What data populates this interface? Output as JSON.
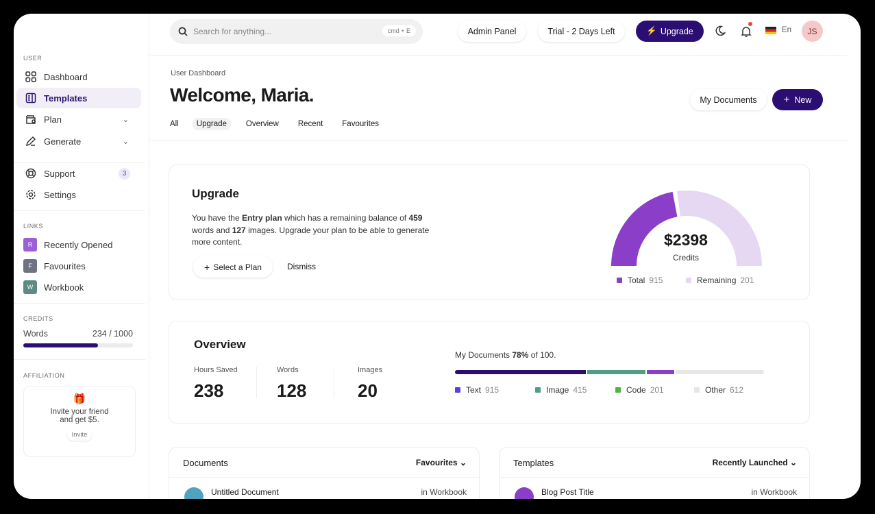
{
  "sidebar": {
    "user_label": "USER",
    "items": [
      {
        "label": "Dashboard",
        "icon": "grid-icon"
      },
      {
        "label": "Templates",
        "icon": "template-icon",
        "active": true
      },
      {
        "label": "Plan",
        "icon": "wallet-icon"
      },
      {
        "label": "Generate",
        "icon": "pencil-icon"
      },
      {
        "label": "Support",
        "icon": "lifebuoy-icon",
        "badge": "3"
      },
      {
        "label": "Settings",
        "icon": "gear-icon"
      }
    ],
    "links_label": "LINKS",
    "links": [
      {
        "letter": "R",
        "label": "Recently Opened",
        "color": "#9b5fd6"
      },
      {
        "letter": "F",
        "label": "Favourites",
        "color": "#6f7280"
      },
      {
        "letter": "W",
        "label": "Workbook",
        "color": "#5f8a84"
      }
    ],
    "credits_label": "CREDITS",
    "credits": {
      "label": "Words",
      "value": "234 / 1000",
      "fill": 0.68
    },
    "affiliation_label": "AFFILIATION",
    "invite": {
      "text1": "Invite your friend",
      "text2": "and get $5.",
      "button": "Invite"
    }
  },
  "topbar": {
    "search_placeholder": "Search for anything...",
    "shortcut": "cmd + E",
    "admin": "Admin Panel",
    "trial": "Trial - 2 Days Left",
    "upgrade": "Upgrade",
    "lang": "En",
    "avatar": "JS"
  },
  "header": {
    "breadcrumb": "User Dashboard",
    "title": "Welcome, Maria.",
    "tabs": [
      "All",
      "Upgrade",
      "Overview",
      "Recent",
      "Favourites"
    ],
    "active_tab": "Upgrade",
    "my_docs": "My Documents",
    "new": "New"
  },
  "upgrade": {
    "title": "Upgrade",
    "text_a": "You have the ",
    "plan": "Entry plan",
    "text_b": " which has a remaining balance of ",
    "words": "459",
    "text_c": " words and ",
    "images": "127",
    "text_d": " images. Upgrade your plan to be able to generate more content.",
    "select": "Select a Plan",
    "dismiss": "Dismiss",
    "gauge": {
      "value": "$2398",
      "label": "Credits",
      "fill": 0.45,
      "colors": {
        "total": "#8b3fc9",
        "remaining": "#e6d8f3"
      },
      "legend": [
        {
          "label": "Total",
          "value": "915"
        },
        {
          "label": "Remaining",
          "value": "201"
        }
      ]
    }
  },
  "overview": {
    "title": "Overview",
    "stats": [
      {
        "label": "Hours Saved",
        "value": "238"
      },
      {
        "label": "Words",
        "value": "128"
      },
      {
        "label": "Images",
        "value": "20"
      }
    ],
    "docs_a": "My Documents ",
    "docs_pct": "78%",
    "docs_b": " of 100.",
    "segments": [
      {
        "label": "Text",
        "value": "915",
        "pct": 43,
        "color": "#2a0e72",
        "legend_color": "#5b3fe0"
      },
      {
        "label": "Image",
        "value": "415",
        "pct": 19,
        "color": "#4e9e88",
        "legend_color": "#4e9e88"
      },
      {
        "label": "Code",
        "value": "201",
        "pct": 9,
        "color": "#8b3fc9",
        "legend_color": "#5aae4a"
      },
      {
        "label": "Other",
        "value": "612",
        "pct": 29,
        "color": "#e6e6e6",
        "legend_color": "#e6e6e6"
      }
    ]
  },
  "documents": {
    "title": "Documents",
    "filter": "Favourites",
    "row": {
      "name": "Untitled Document",
      "where": "in Workbook"
    }
  },
  "templates": {
    "title": "Templates",
    "filter": "Recently Launched",
    "row": {
      "name": "Blog Post Title",
      "where": "in Workbook"
    }
  }
}
